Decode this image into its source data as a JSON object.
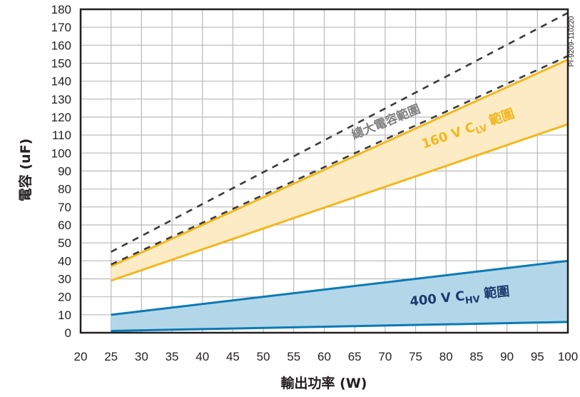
{
  "chart_data": {
    "type": "area",
    "title": "",
    "xlabel": "輸出功率 (W)",
    "ylabel": "電容 (uF)",
    "xlim": [
      20,
      100
    ],
    "ylim": [
      0,
      180
    ],
    "x_ticks": [
      20,
      25,
      30,
      35,
      40,
      45,
      50,
      55,
      60,
      65,
      70,
      75,
      80,
      85,
      90,
      95,
      100
    ],
    "y_ticks": [
      0,
      10,
      20,
      30,
      40,
      50,
      60,
      70,
      80,
      90,
      100,
      110,
      120,
      130,
      140,
      150,
      160,
      170,
      180
    ],
    "grid": true,
    "x_grid_step": 5,
    "y_grid_step": 10,
    "series": [
      {
        "name": "400 V CHV 範圍",
        "label_main": "400 V C",
        "label_sub": "HV",
        "label_suffix": " 範圍",
        "style": "band",
        "fill": "#b3d7e8",
        "stroke": "#0a7ab6",
        "label_color": "#1d3a6e",
        "x": [
          25,
          100
        ],
        "lower": [
          1,
          6
        ],
        "upper": [
          10,
          40
        ]
      },
      {
        "name": "160 V CLV 範圍",
        "label_main": "160 V C",
        "label_sub": "LV",
        "label_suffix": " 範圍",
        "style": "band",
        "fill": "#fcebc4",
        "stroke": "#f2b71f",
        "label_color": "#f2b71f",
        "x": [
          25,
          100
        ],
        "lower": [
          29,
          116
        ],
        "upper": [
          37,
          152
        ]
      },
      {
        "name": "總大電容範圍",
        "label_main": "總大電容範圍",
        "style": "dashed",
        "stroke": "#3a3a3a",
        "label_color": "#808080",
        "x": [
          25,
          100
        ],
        "lower": [
          38,
          154
        ],
        "upper": [
          45,
          178
        ]
      }
    ],
    "annotation": "PI-9209-110220"
  }
}
